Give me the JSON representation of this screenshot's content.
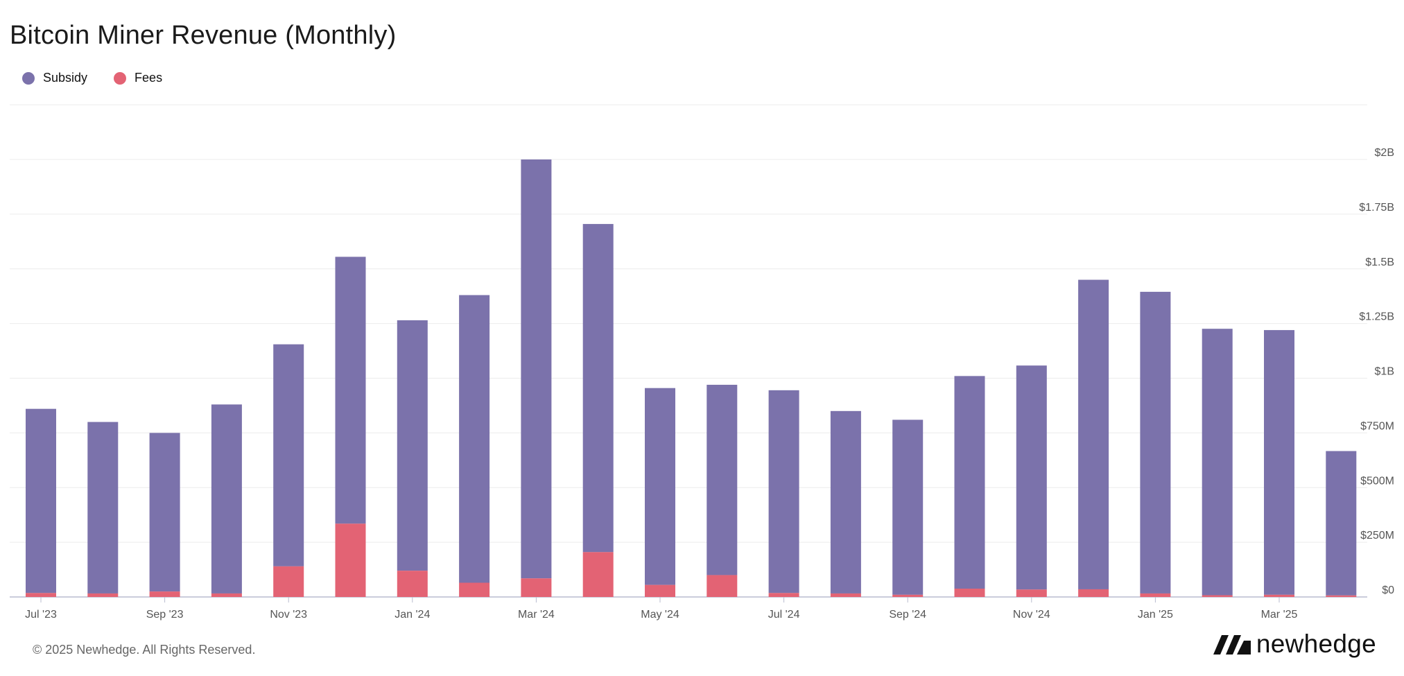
{
  "title": "Bitcoin Miner Revenue (Monthly)",
  "legend": {
    "subsidy": "Subsidy",
    "fees": "Fees"
  },
  "colors": {
    "subsidy": "#7b72ab",
    "fees": "#e36374",
    "grid": "#ececec",
    "axis": "#b8bccf"
  },
  "footer": {
    "copyright": "© 2025 Newhedge. All Rights Reserved.",
    "brand": "newhedge"
  },
  "chart_data": {
    "type": "bar",
    "stacked": true,
    "categories": [
      "Jul '23",
      "Aug '23",
      "Sep '23",
      "Oct '23",
      "Nov '23",
      "Dec '23",
      "Jan '24",
      "Feb '24",
      "Mar '24",
      "Apr '24",
      "May '24",
      "Jun '24",
      "Jul '24",
      "Aug '24",
      "Sep '24",
      "Oct '24",
      "Nov '24",
      "Dec '24",
      "Jan '25",
      "Feb '25",
      "Mar '25",
      "Apr '25"
    ],
    "x_tick_labels": [
      "Jul '23",
      "Sep '23",
      "Nov '23",
      "Jan '24",
      "Mar '24",
      "May '24",
      "Jul '24",
      "Sep '24",
      "Nov '24",
      "Jan '25",
      "Mar '25"
    ],
    "series": [
      {
        "name": "Fees",
        "values": [
          0.018,
          0.016,
          0.025,
          0.016,
          0.14,
          0.335,
          0.12,
          0.065,
          0.085,
          0.205,
          0.055,
          0.1,
          0.018,
          0.016,
          0.01,
          0.038,
          0.034,
          0.035,
          0.016,
          0.008,
          0.01,
          0.007
        ]
      },
      {
        "name": "Subsidy",
        "values": [
          0.842,
          0.784,
          0.725,
          0.864,
          1.015,
          1.22,
          1.145,
          1.315,
          1.915,
          1.5,
          0.9,
          0.87,
          0.927,
          0.834,
          0.8,
          0.972,
          1.024,
          1.415,
          1.379,
          1.218,
          1.21,
          0.66
        ]
      }
    ],
    "units": "USD billions",
    "y_tick_labels": [
      "$0",
      "$250M",
      "$500M",
      "$750M",
      "$1B",
      "$1.25B",
      "$1.5B",
      "$1.75B",
      "$2B"
    ],
    "ylim": [
      0,
      2.25
    ],
    "grid": true,
    "legend_position": "top-left",
    "y_axis_position": "right"
  }
}
